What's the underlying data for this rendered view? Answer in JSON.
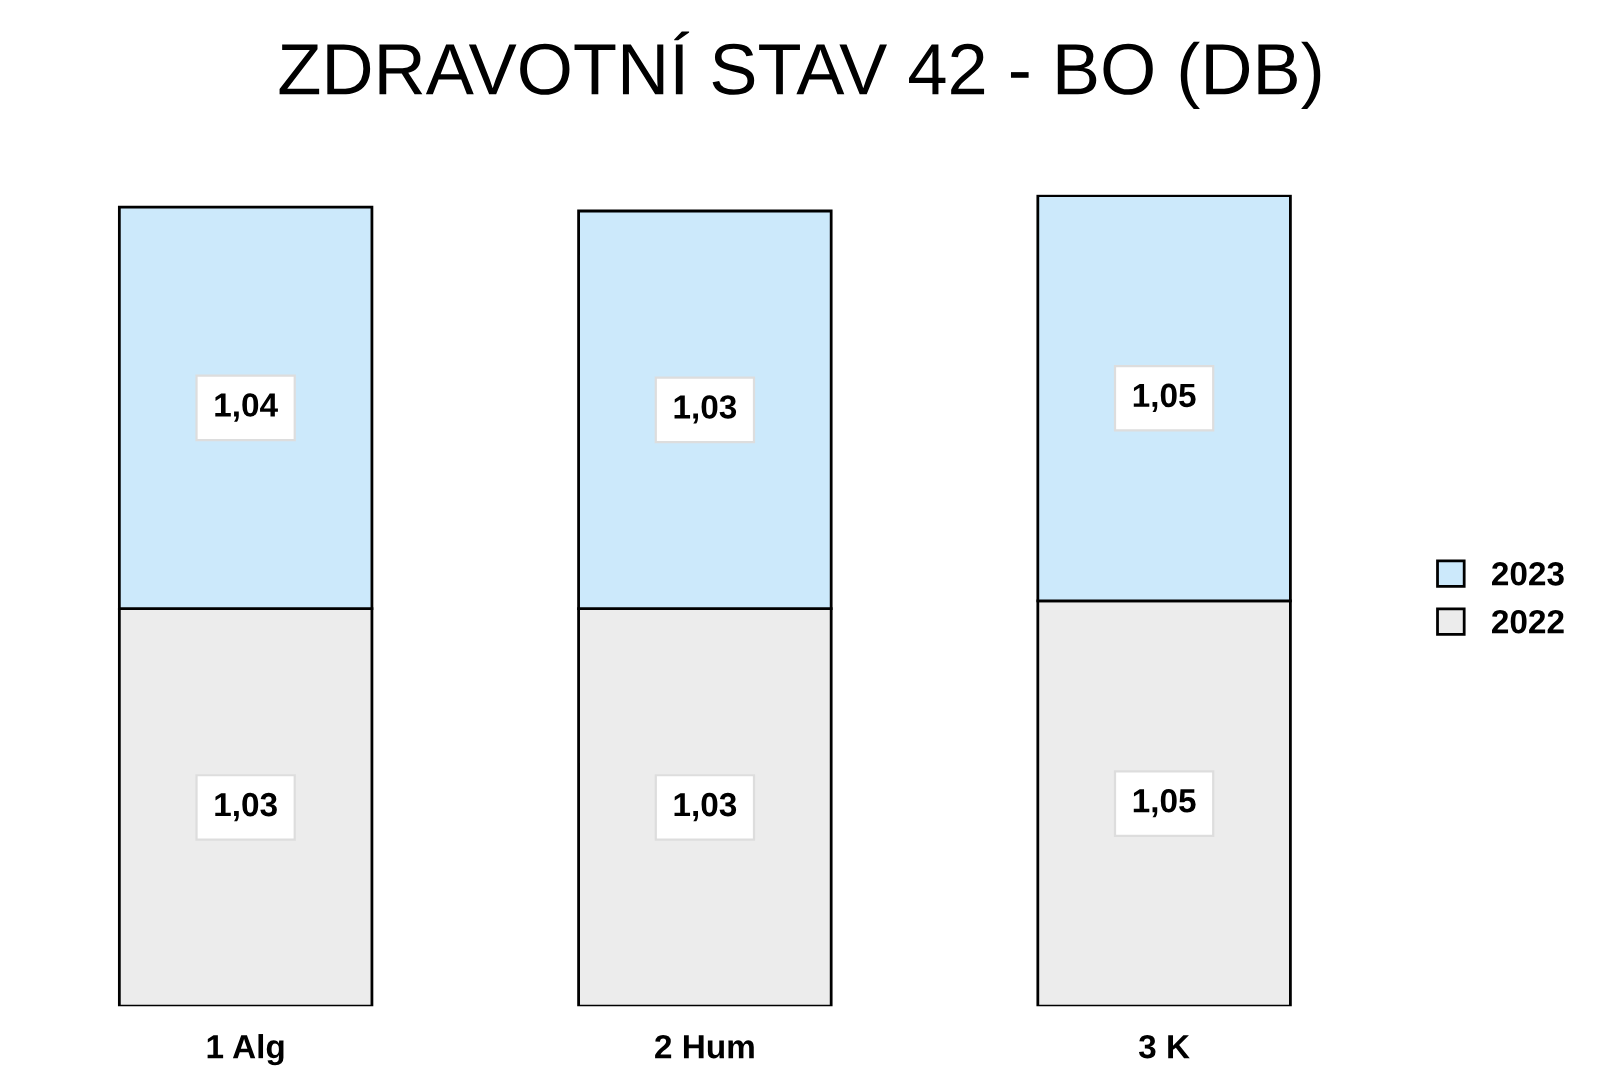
{
  "chart_data": {
    "type": "bar",
    "title": "ZDRAVOTNÍ STAV 42 - BO (DB)",
    "categories": [
      "1 Alg",
      "2 Hum",
      "3 K"
    ],
    "stacked": true,
    "series": [
      {
        "name": "2022",
        "color": "#ececec",
        "values": [
          1.03,
          1.03,
          1.05
        ],
        "value_labels": [
          "1,03",
          "1,03",
          "1,05"
        ]
      },
      {
        "name": "2023",
        "color": "#cce9fb",
        "values": [
          1.04,
          1.03,
          1.05
        ],
        "value_labels": [
          "1,04",
          "1,03",
          "1,05"
        ]
      }
    ],
    "legend": "right",
    "grid": false
  }
}
